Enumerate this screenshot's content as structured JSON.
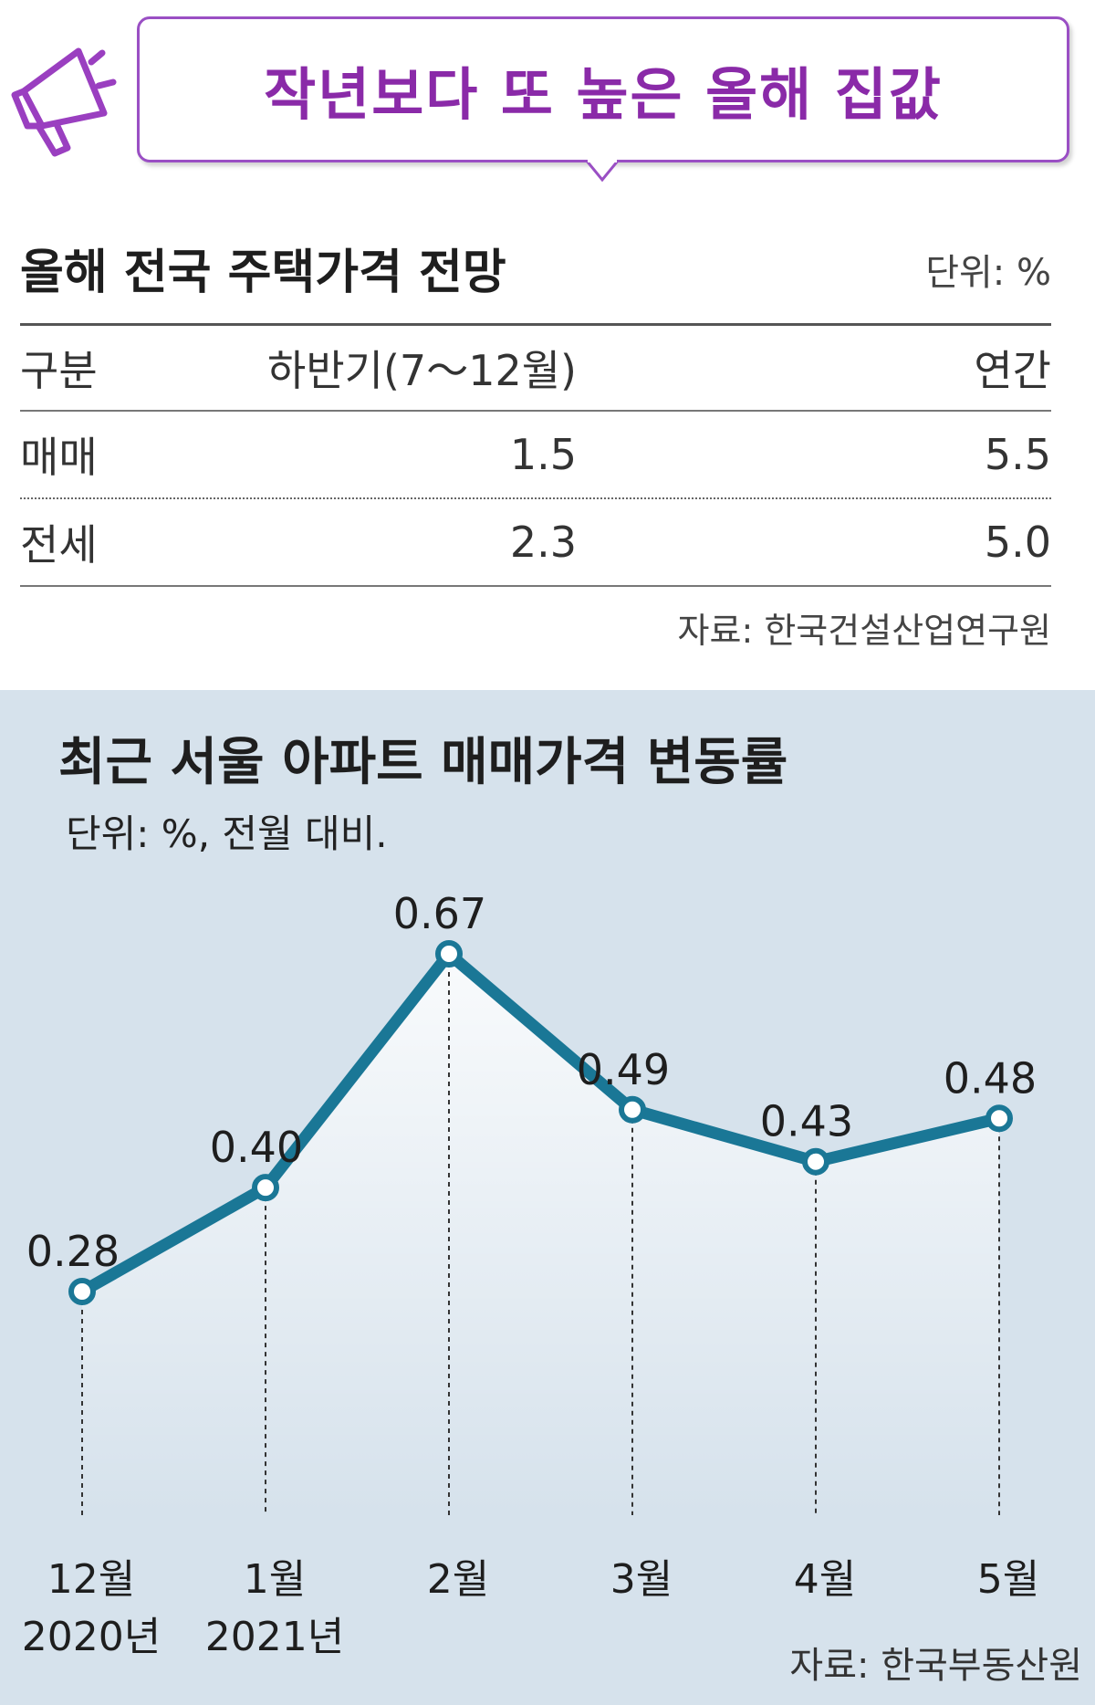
{
  "headline": "작년보다 또 높은 올해 집값",
  "colors": {
    "accent_purple": "#9a4fc4",
    "headline_text": "#8a2aa8",
    "chart_bg": "#d6e2ec",
    "line": "#1a7796",
    "marker_fill": "#ffffff"
  },
  "icons": {
    "headline_icon": "megaphone-icon"
  },
  "outlook_table": {
    "title": "올해 전국 주택가격 전망",
    "unit": "단위: %",
    "columns": [
      "구분",
      "하반기(7～12월)",
      "연간"
    ],
    "rows": [
      [
        "매매",
        "1.5",
        "5.5"
      ],
      [
        "전세",
        "2.3",
        "5.0"
      ]
    ],
    "source": "자료: 한국건설산업연구원"
  },
  "chart_title": "최근 서울 아파트 매매가격 변동률",
  "chart_unit": "단위: %, 전월 대비.",
  "chart_source": "자료: 한국부동산원",
  "chart_data": {
    "type": "line",
    "title": "최근 서울 아파트 매매가격 변동률",
    "ylabel": "",
    "xlabel": "",
    "categories": [
      "12월",
      "1월",
      "2월",
      "3월",
      "4월",
      "5월"
    ],
    "year_labels": [
      "2020년",
      "2021년",
      "",
      "",
      "",
      ""
    ],
    "series": [
      {
        "values": [
          0.28,
          0.4,
          0.67,
          0.49,
          0.43,
          0.48
        ]
      }
    ],
    "value_labels": [
      "0.28",
      "0.40",
      "0.67",
      "0.49",
      "0.43",
      "0.48"
    ],
    "ylim": [
      0,
      0.9
    ],
    "grid": false,
    "legend": "none"
  }
}
